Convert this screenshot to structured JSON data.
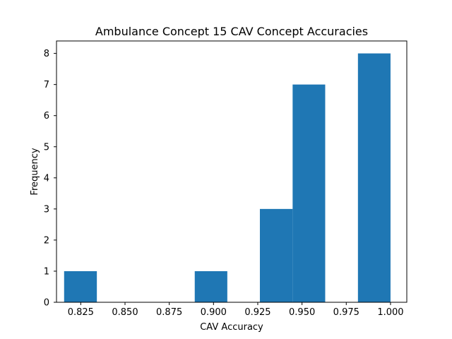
{
  "chart_data": {
    "type": "bar",
    "title": "Ambulance Concept 15 CAV Concept Accuracies",
    "xlabel": "CAV Accuracy",
    "ylabel": "Frequency",
    "bar_color": "#1f77b4",
    "xlim": [
      0.8113,
      1.0092
    ],
    "ylim": [
      0,
      8.4
    ],
    "grid": false,
    "x_ticks": [
      {
        "value": 0.825,
        "label": "0.825"
      },
      {
        "value": 0.85,
        "label": "0.850"
      },
      {
        "value": 0.875,
        "label": "0.875"
      },
      {
        "value": 0.9,
        "label": "0.900"
      },
      {
        "value": 0.925,
        "label": "0.925"
      },
      {
        "value": 0.95,
        "label": "0.950"
      },
      {
        "value": 0.975,
        "label": "0.975"
      },
      {
        "value": 1.0,
        "label": "1.000"
      }
    ],
    "y_ticks": [
      {
        "value": 0,
        "label": "0"
      },
      {
        "value": 1,
        "label": "1"
      },
      {
        "value": 2,
        "label": "2"
      },
      {
        "value": 3,
        "label": "3"
      },
      {
        "value": 4,
        "label": "4"
      },
      {
        "value": 5,
        "label": "5"
      },
      {
        "value": 6,
        "label": "6"
      },
      {
        "value": 7,
        "label": "7"
      },
      {
        "value": 8,
        "label": "8"
      }
    ],
    "bins": [
      {
        "x0": 0.8156,
        "x1": 0.8341,
        "count": 1
      },
      {
        "x0": 0.8341,
        "x1": 0.8525,
        "count": 0
      },
      {
        "x0": 0.8525,
        "x1": 0.8709,
        "count": 0
      },
      {
        "x0": 0.8709,
        "x1": 0.8894,
        "count": 0
      },
      {
        "x0": 0.8894,
        "x1": 0.9078,
        "count": 1
      },
      {
        "x0": 0.9078,
        "x1": 0.9262,
        "count": 0
      },
      {
        "x0": 0.9262,
        "x1": 0.9447,
        "count": 3
      },
      {
        "x0": 0.9447,
        "x1": 0.9631,
        "count": 7
      },
      {
        "x0": 0.9631,
        "x1": 0.9816,
        "count": 0
      },
      {
        "x0": 0.9816,
        "x1": 1.0,
        "count": 8
      }
    ]
  }
}
